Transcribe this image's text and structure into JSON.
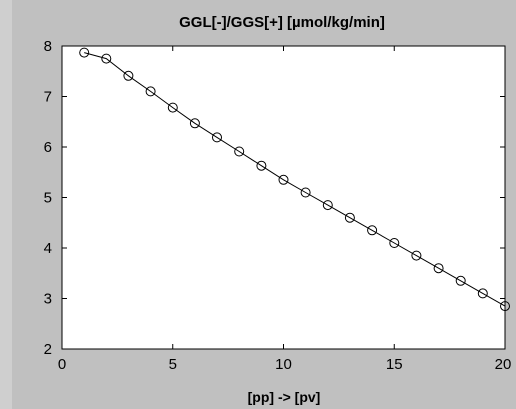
{
  "chart_data": {
    "type": "line",
    "title": "GGL[-]/GGS[+] [µmol/kg/min]",
    "xlabel": "[pp] -> [pv]",
    "ylabel": "",
    "xlim": [
      0,
      20
    ],
    "ylim": [
      2,
      8
    ],
    "xticks": [
      "0",
      "5",
      "10",
      "15",
      "20"
    ],
    "yticks": [
      "2",
      "3",
      "4",
      "5",
      "6",
      "7",
      "8"
    ],
    "grid": false,
    "marker": "circle",
    "series": [
      {
        "x": [
          1,
          2,
          3,
          4,
          5,
          6,
          7,
          8,
          9,
          10,
          11,
          12,
          13,
          14,
          15,
          16,
          17,
          18,
          19,
          20
        ],
        "values": [
          7.87,
          7.75,
          7.41,
          7.1,
          6.78,
          6.47,
          6.19,
          5.91,
          5.63,
          5.35,
          5.1,
          4.85,
          4.6,
          4.35,
          4.1,
          3.85,
          3.6,
          3.35,
          3.1,
          2.85
        ]
      }
    ]
  }
}
